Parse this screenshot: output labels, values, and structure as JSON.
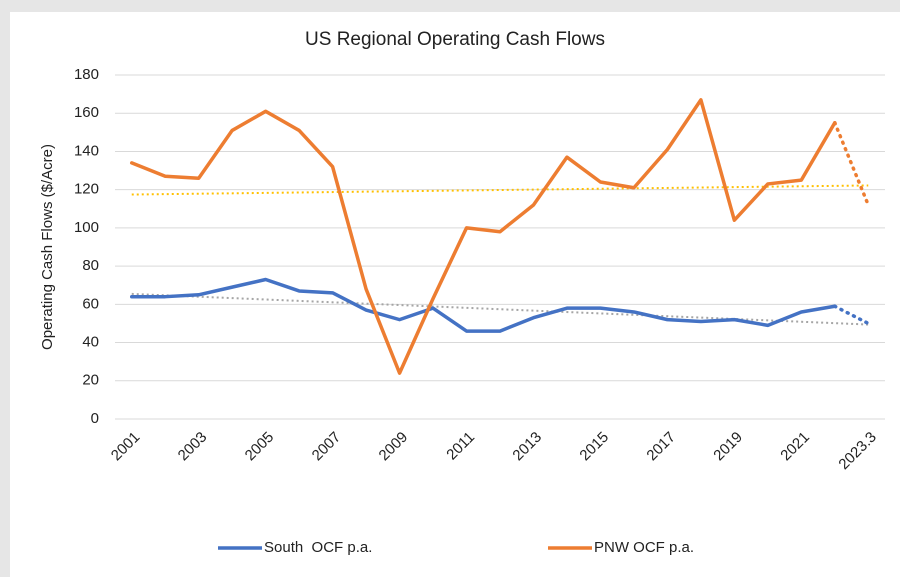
{
  "chart_data": {
    "type": "line",
    "title": "US Regional Operating Cash Flows",
    "y_label": "Operating Cash Flows ($/Acre)",
    "categories": [
      "2001",
      null,
      "2003",
      null,
      "2005",
      null,
      "2007",
      null,
      "2009",
      null,
      "2011",
      null,
      "2013",
      null,
      "2015",
      null,
      "2017",
      null,
      "2019",
      null,
      "2021",
      null,
      "2023.3"
    ],
    "series": [
      {
        "name": "South  OCF p.a.",
        "color": "#4472c4",
        "trend_color": "#a5a5a5",
        "values": [
          64,
          64,
          65,
          69,
          73,
          67,
          66,
          57,
          52,
          58,
          46,
          46,
          53,
          58,
          58,
          56,
          52,
          51,
          52,
          49,
          56,
          59,
          50
        ]
      },
      {
        "name": "PNW OCF p.a.",
        "color": "#ed7d31",
        "trend_color": "#ffc000",
        "values": [
          134,
          127,
          126,
          151,
          161,
          151,
          132,
          68,
          24,
          63,
          100,
          98,
          112,
          137,
          124,
          121,
          141,
          167,
          104,
          123,
          125,
          155,
          112
        ]
      }
    ],
    "ylim": [
      0,
      180
    ],
    "yticks": [
      0,
      20,
      40,
      60,
      80,
      100,
      120,
      140,
      160,
      180
    ],
    "grid": true,
    "trendline": true,
    "projection_dotted": true,
    "legend": "bottom"
  }
}
